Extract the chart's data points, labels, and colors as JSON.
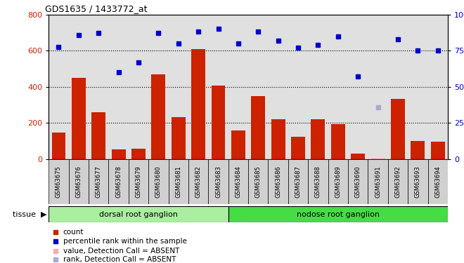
{
  "title": "GDS1635 / 1433772_at",
  "categories": [
    "GSM63675",
    "GSM63676",
    "GSM63677",
    "GSM63678",
    "GSM63679",
    "GSM63680",
    "GSM63681",
    "GSM63682",
    "GSM63683",
    "GSM63684",
    "GSM63685",
    "GSM63686",
    "GSM63687",
    "GSM63688",
    "GSM63689",
    "GSM63690",
    "GSM63691",
    "GSM63692",
    "GSM63693",
    "GSM63694"
  ],
  "bar_values": [
    145,
    450,
    258,
    52,
    58,
    470,
    232,
    610,
    405,
    160,
    348,
    222,
    125,
    220,
    195,
    30,
    5,
    332,
    100,
    95
  ],
  "bar_absent": [
    false,
    false,
    false,
    false,
    false,
    false,
    false,
    false,
    false,
    false,
    false,
    false,
    false,
    false,
    false,
    false,
    true,
    false,
    false,
    false
  ],
  "dot_values_pct": [
    77.5,
    86,
    87,
    60,
    67,
    87,
    80,
    88,
    90,
    80,
    88,
    82,
    77,
    79,
    85,
    57,
    36,
    83,
    75,
    75
  ],
  "dot_absent": [
    false,
    false,
    false,
    false,
    false,
    false,
    false,
    false,
    false,
    false,
    false,
    false,
    false,
    false,
    false,
    false,
    true,
    false,
    false,
    false
  ],
  "ylim_left": [
    0,
    800
  ],
  "ylim_right": [
    0,
    100
  ],
  "yticks_left": [
    0,
    200,
    400,
    600,
    800
  ],
  "yticks_right": [
    0,
    25,
    50,
    75,
    100
  ],
  "grid_vals": [
    200,
    400,
    600
  ],
  "tissue_groups": [
    {
      "label": "dorsal root ganglion",
      "start": 0,
      "end": 9
    },
    {
      "label": "nodose root ganglion",
      "start": 9,
      "end": 20
    }
  ],
  "tissue_label": "tissue",
  "bar_color": "#cc2200",
  "bar_absent_color": "#ffaaaa",
  "dot_color": "#0000cc",
  "dot_absent_color": "#aaaacc",
  "bg_color": "#e0e0e0",
  "xtick_bg": "#d0d0d0",
  "tissue_color_1": "#aaeea0",
  "tissue_color_2": "#44dd44",
  "legend_items": [
    {
      "label": "count",
      "color": "#cc2200"
    },
    {
      "label": "percentile rank within the sample",
      "color": "#0000cc"
    },
    {
      "label": "value, Detection Call = ABSENT",
      "color": "#ffaaaa"
    },
    {
      "label": "rank, Detection Call = ABSENT",
      "color": "#aaaadd"
    }
  ]
}
